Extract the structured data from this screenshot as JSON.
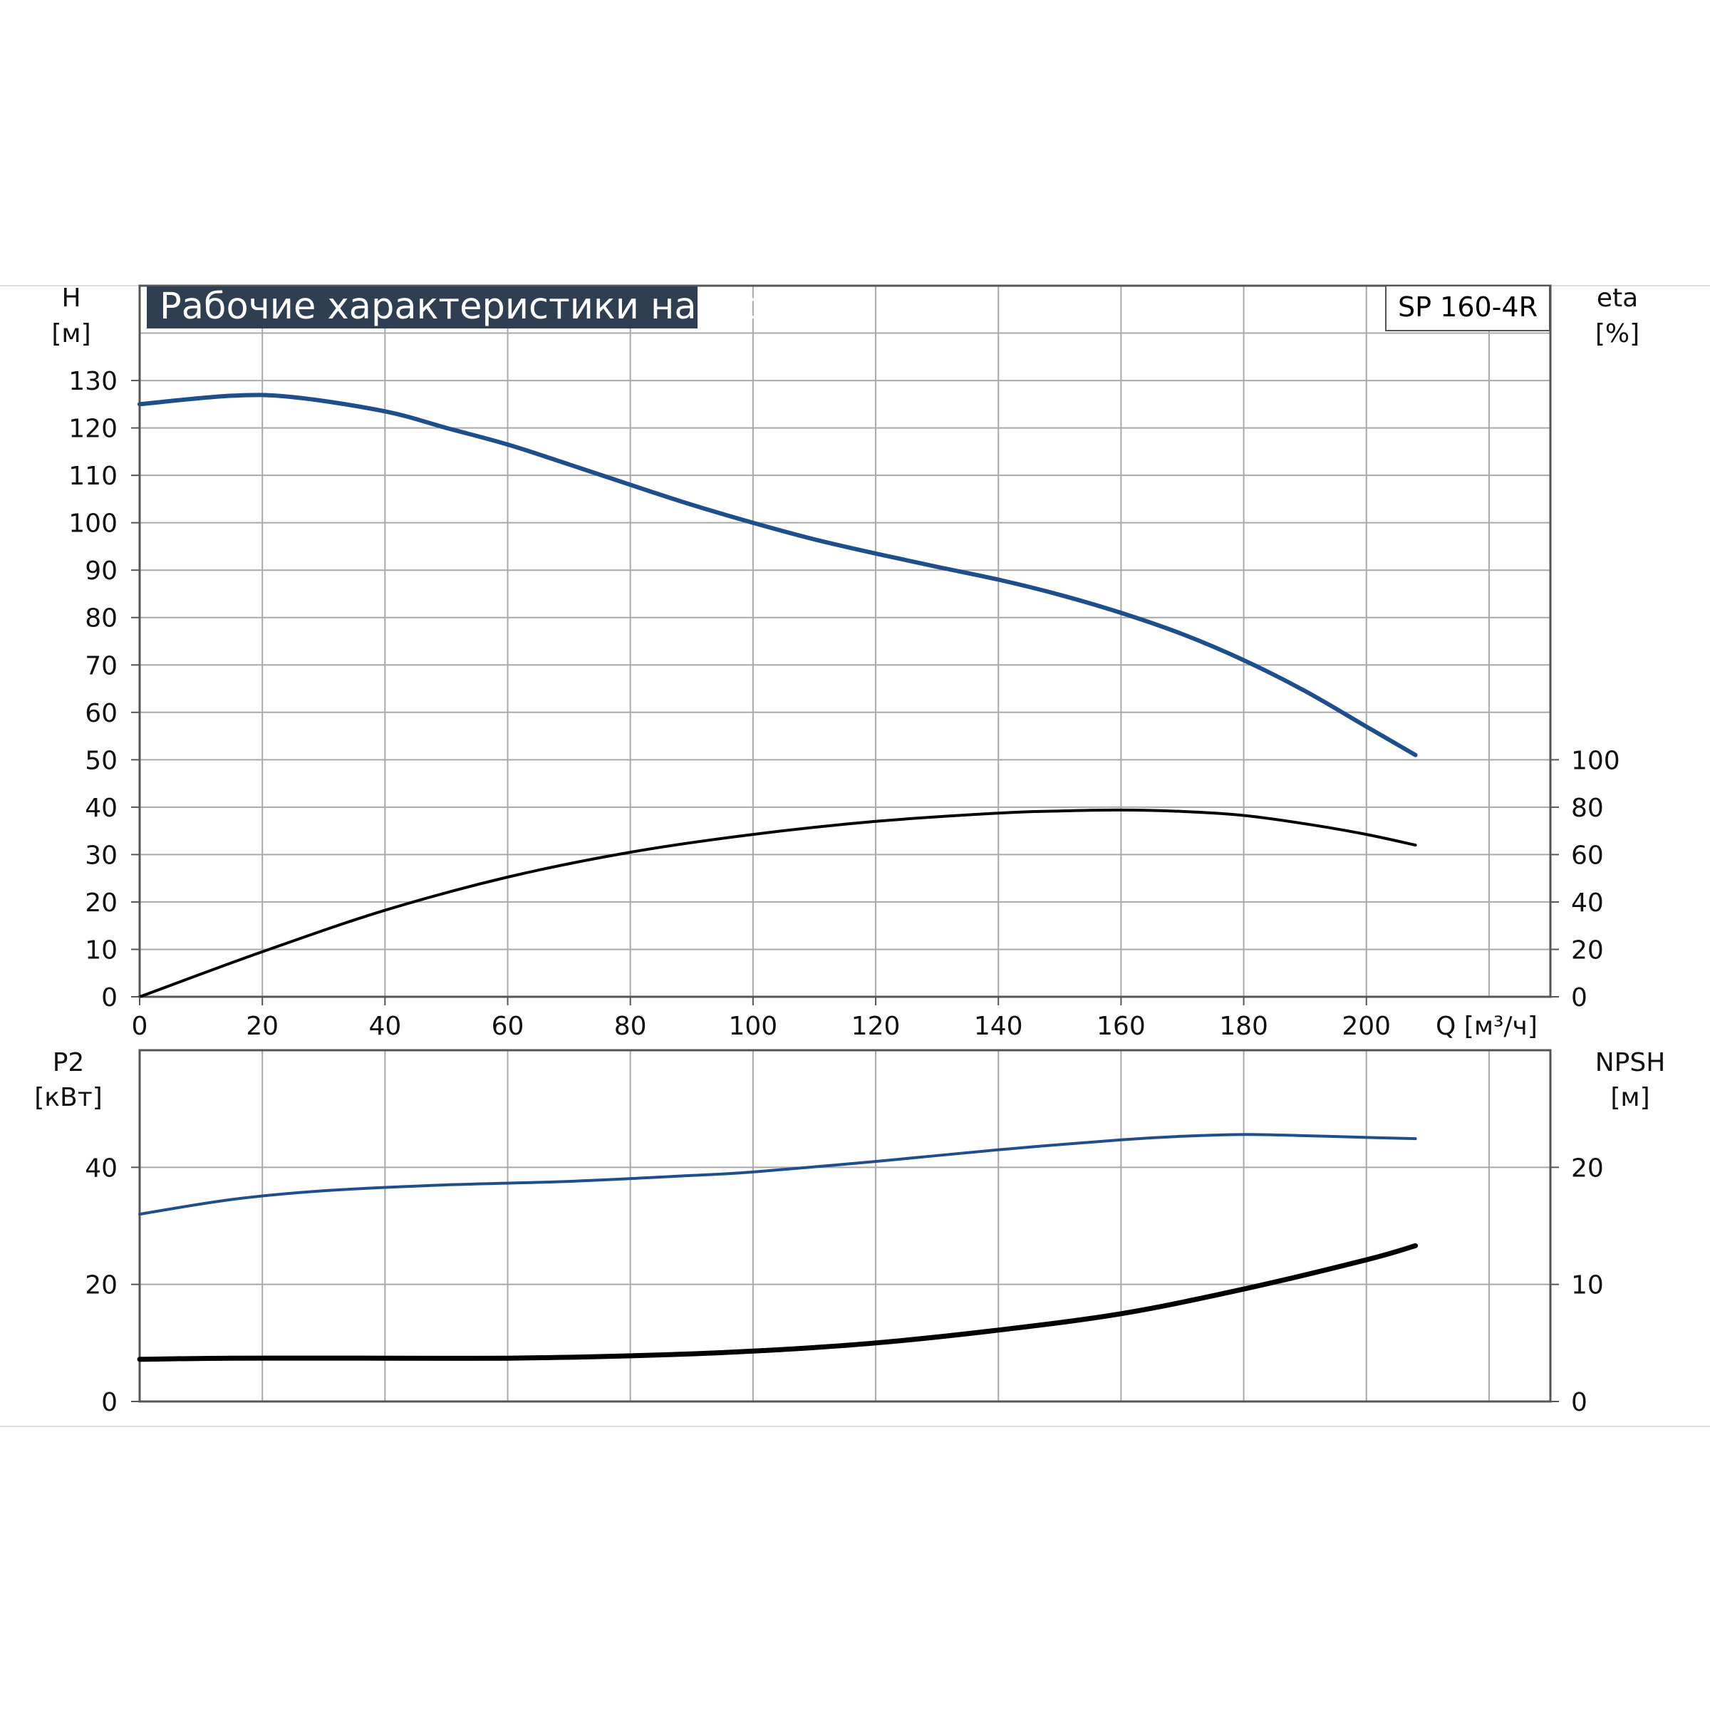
{
  "chart_data": [
    {
      "type": "line",
      "title": "Рабочие характеристики насоса",
      "model_label": "SP 160-4R",
      "x_unit_label": "Q [м³/ч]",
      "xlim": [
        0,
        230
      ],
      "x_ticks": [
        "0",
        "20",
        "40",
        "60",
        "80",
        "100",
        "120",
        "140",
        "160",
        "180",
        "200"
      ],
      "left_axis": {
        "label": "H",
        "unit": "[м]",
        "ylim": [
          0,
          150
        ],
        "ticks": [
          "0",
          "10",
          "20",
          "30",
          "40",
          "50",
          "60",
          "70",
          "80",
          "90",
          "100",
          "110",
          "120",
          "130"
        ]
      },
      "right_axis": {
        "label": "eta",
        "unit": "[%]",
        "ylim": [
          0,
          300
        ],
        "ticks": [
          "0",
          "20",
          "40",
          "60",
          "80",
          "100"
        ]
      },
      "grid": true,
      "series": [
        {
          "axis": "left",
          "color": "#1f4e8c",
          "x": [
            0,
            15,
            25,
            40,
            50,
            60,
            70,
            80,
            90,
            100,
            110,
            120,
            130,
            140,
            150,
            160,
            170,
            180,
            190,
            200,
            208
          ],
          "y": [
            125,
            126.8,
            126.5,
            123.5,
            120,
            116.5,
            112.3,
            108,
            103.8,
            100,
            96.5,
            93.5,
            90.7,
            88,
            84.8,
            81,
            76.5,
            71,
            64.5,
            57,
            51
          ]
        },
        {
          "axis": "right",
          "color": "#000000",
          "x": [
            0,
            20,
            40,
            60,
            80,
            100,
            120,
            140,
            150,
            160,
            170,
            180,
            190,
            200,
            208
          ],
          "y": [
            0,
            19,
            36.5,
            50.5,
            61,
            68.5,
            74,
            77.5,
            78.4,
            78.8,
            78.2,
            76.5,
            73,
            68.5,
            64
          ]
        }
      ]
    },
    {
      "type": "line",
      "x_ticks": [
        "0",
        "20",
        "40",
        "60",
        "80",
        "100",
        "120",
        "140",
        "160",
        "180",
        "200"
      ],
      "left_axis": {
        "label": "P2",
        "unit": "[кВт]",
        "ylim": [
          0,
          60
        ],
        "ticks": [
          "0",
          "20",
          "40"
        ]
      },
      "right_axis": {
        "label": "NPSH",
        "unit": "[м]",
        "ylim": [
          0,
          30
        ],
        "ticks": [
          "0",
          "10",
          "20"
        ]
      },
      "grid": true,
      "series": [
        {
          "axis": "left",
          "color": "#1f4e8c",
          "x": [
            0,
            15,
            30,
            50,
            70,
            90,
            100,
            120,
            140,
            160,
            170,
            180,
            190,
            200,
            208
          ],
          "y": [
            32,
            34.5,
            36,
            37,
            37.6,
            38.6,
            39.2,
            41,
            43,
            44.7,
            45.3,
            45.6,
            45.4,
            45.1,
            44.9
          ]
        },
        {
          "axis": "right",
          "color": "#000000",
          "x": [
            0,
            15,
            40,
            60,
            80,
            100,
            120,
            140,
            160,
            180,
            200,
            208
          ],
          "y": [
            3.6,
            3.7,
            3.7,
            3.7,
            3.9,
            4.3,
            5,
            6.1,
            7.5,
            9.6,
            12.1,
            13.3
          ]
        }
      ]
    }
  ]
}
